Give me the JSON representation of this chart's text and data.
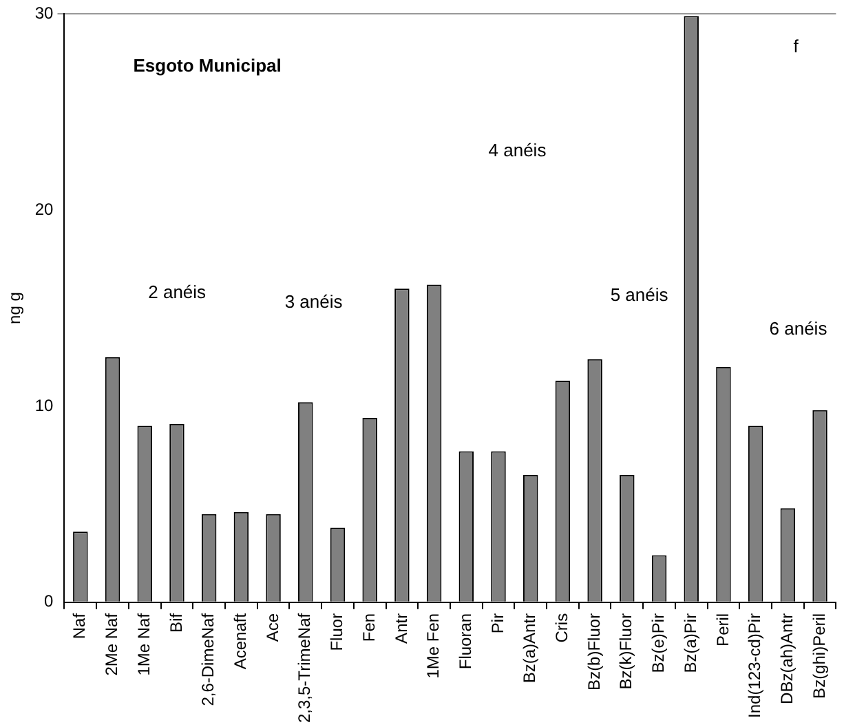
{
  "chart_data": {
    "type": "bar",
    "title": "Esgoto Municipal",
    "ylabel": "ng g",
    "categories": [
      "Naf",
      "2Me Naf",
      "1Me Naf",
      "Bif",
      "2,6-DimeNaf",
      "Acenaft",
      "Ace",
      "2,3,5-TrimeNaf",
      "Fluor",
      "Fen",
      "Antr",
      "1Me Fen",
      "Fluoran",
      "Pir",
      "Bz(a)Antr",
      "Cris",
      "Bz(b)Fluor",
      "Bz(k)Fluor",
      "Bz(e)Pir",
      "Bz(a)Pir",
      "Peril",
      "Ind(123-cd)Pir",
      "DBz(ah)Antr",
      "Bz(ghi)Peril"
    ],
    "values": [
      3.6,
      12.5,
      9.0,
      9.1,
      4.5,
      4.6,
      4.5,
      10.2,
      3.8,
      9.4,
      16.0,
      16.2,
      7.7,
      7.7,
      6.5,
      11.3,
      12.4,
      6.5,
      2.4,
      29.9,
      12.0,
      9.0,
      4.8,
      9.8
    ],
    "color": "#808080",
    "ylim": [
      0,
      30
    ],
    "yticks": [
      0,
      10,
      20,
      30
    ],
    "annotations": [
      "2 anéis",
      "3 anéis",
      "4 anéis",
      "5 anéis",
      "6 anéis",
      "f"
    ],
    "legend": false
  }
}
